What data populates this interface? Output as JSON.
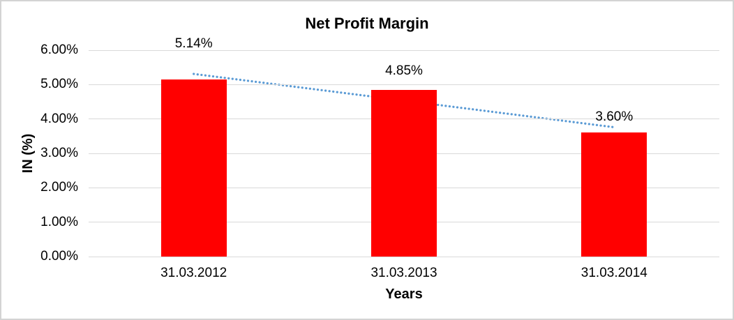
{
  "window": {
    "background": "#ffffff",
    "border_color": "#d3d3d3"
  },
  "chart_data": {
    "type": "bar",
    "title": "Net Profit Margin",
    "xlabel": "Years",
    "ylabel": "IN (%)",
    "categories": [
      "31.03.2012",
      "31.03.2013",
      "31.03.2014"
    ],
    "values": [
      5.14,
      4.85,
      3.6
    ],
    "data_labels": [
      "5.14%",
      "4.85%",
      "3.60%"
    ],
    "ylim": [
      0,
      6
    ],
    "ytick_step": 1,
    "ytick_labels": [
      "0.00%",
      "1.00%",
      "2.00%",
      "3.00%",
      "4.00%",
      "5.00%",
      "6.00%"
    ],
    "grid": true,
    "legend": "none",
    "bar_color": "#ff0000",
    "gridline_color": "#d9d9d9",
    "text_color": "#000000",
    "trendline": {
      "type": "linear",
      "style": "dotted",
      "color": "#5b9bd5",
      "start_value": 5.31,
      "end_value": 3.76,
      "start_category": "31.03.2012",
      "end_category": "31.03.2014"
    }
  }
}
